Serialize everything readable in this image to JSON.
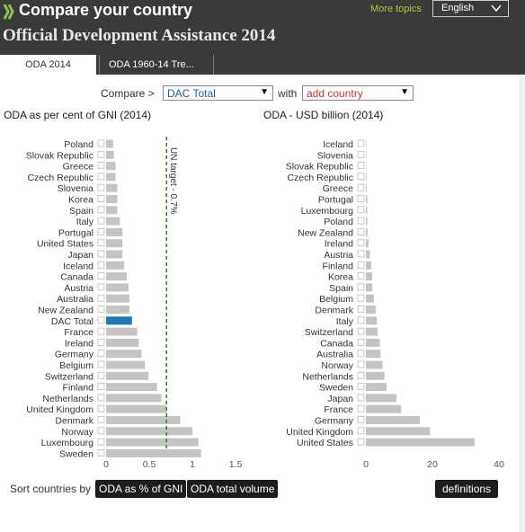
{
  "header": {
    "app_title": "Compare your country",
    "more_topics": "More topics",
    "language": "English",
    "page_title": "Official Development Assistance 2014"
  },
  "tabs": [
    {
      "label": "ODA 2014",
      "active": true
    },
    {
      "label": "ODA 1960-14 Tre...",
      "active": false
    }
  ],
  "compare": {
    "label": "Compare >",
    "selected": "DAC Total",
    "with_label": "with",
    "add_country": "add country"
  },
  "colors": {
    "bar": "#c4c4c4",
    "highlight": "#1f77b4",
    "target_line": "#2e7d32",
    "add_country": "#c0392b",
    "more_topics": "#a7cc3a",
    "selected_text": "#1a5fa8"
  },
  "icons": {
    "logo": "oecd-logo-icon",
    "language_chevron": "chevron-down-icon",
    "dropdown_arrow": "dropdown-arrow-icon"
  },
  "sort": {
    "label": "Sort countries by",
    "by_pct": "ODA as % of GNI",
    "by_volume": "ODA total volume",
    "definitions": "definitions"
  },
  "chart_data": [
    {
      "type": "bar",
      "title": "ODA as per cent of GNI (2014)",
      "orientation": "horizontal",
      "xlim": [
        0,
        1.5
      ],
      "xticks": [
        "0",
        "0.5",
        "1",
        "1.5"
      ],
      "reference_line": {
        "value": 0.7,
        "label": "UN target - 0.7%"
      },
      "highlight": "DAC Total",
      "categories": [
        "Poland",
        "Slovak Republic",
        "Greece",
        "Czech Republic",
        "Slovenia",
        "Korea",
        "Spain",
        "Italy",
        "Portugal",
        "United States",
        "Japan",
        "Iceland",
        "Canada",
        "Austria",
        "Australia",
        "New Zealand",
        "DAC Total",
        "France",
        "Ireland",
        "Germany",
        "Belgium",
        "Switzerland",
        "Finland",
        "Netherlands",
        "United Kingdom",
        "Denmark",
        "Norway",
        "Luxembourg",
        "Sweden"
      ],
      "values": [
        0.08,
        0.09,
        0.11,
        0.11,
        0.13,
        0.13,
        0.13,
        0.16,
        0.19,
        0.19,
        0.19,
        0.21,
        0.24,
        0.26,
        0.27,
        0.27,
        0.3,
        0.36,
        0.38,
        0.41,
        0.45,
        0.49,
        0.59,
        0.64,
        0.7,
        0.86,
        1.0,
        1.07,
        1.1
      ]
    },
    {
      "type": "bar",
      "title": "ODA - USD billion (2014)",
      "orientation": "horizontal",
      "xlim": [
        0,
        40
      ],
      "xticks": [
        "0",
        "20",
        "40"
      ],
      "categories": [
        "Iceland",
        "Slovenia",
        "Slovak Republic",
        "Czech Republic",
        "Greece",
        "Portugal",
        "Luxembourg",
        "Poland",
        "New Zealand",
        "Ireland",
        "Austria",
        "Finland",
        "Korea",
        "Spain",
        "Belgium",
        "Denmark",
        "Italy",
        "Switzerland",
        "Canada",
        "Australia",
        "Norway",
        "Netherlands",
        "Sweden",
        "Japan",
        "France",
        "Germany",
        "United Kingdom",
        "United States"
      ],
      "values": [
        0.04,
        0.06,
        0.08,
        0.21,
        0.25,
        0.43,
        0.42,
        0.45,
        0.5,
        0.8,
        1.2,
        1.6,
        1.9,
        1.9,
        2.4,
        3.0,
        3.3,
        3.5,
        4.2,
        4.4,
        5.0,
        5.6,
        6.2,
        9.2,
        10.6,
        16.2,
        19.3,
        32.7
      ]
    }
  ]
}
